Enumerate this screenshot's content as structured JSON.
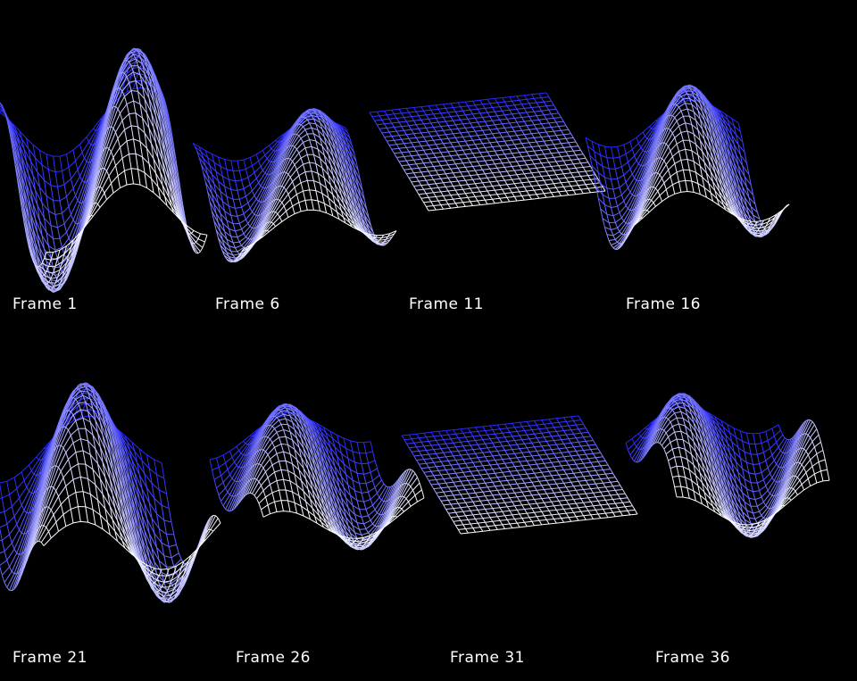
{
  "frames": [
    {
      "label": "Frame 1"
    },
    {
      "label": "Frame 6"
    },
    {
      "label": "Frame 11"
    },
    {
      "label": "Frame 16"
    },
    {
      "label": "Frame 21"
    },
    {
      "label": "Frame 26"
    },
    {
      "label": "Frame 31"
    },
    {
      "label": "Frame 36"
    }
  ]
}
